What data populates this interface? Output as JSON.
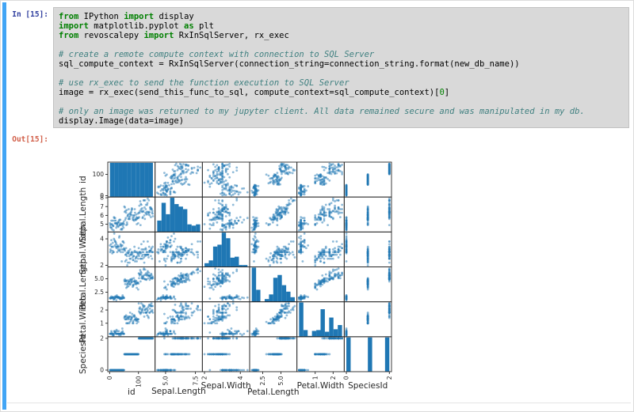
{
  "notebook": {
    "input_prompt": "In [15]:",
    "output_prompt": "Out[15]:",
    "code_lines": [
      [
        {
          "t": "from",
          "s": "kw"
        },
        {
          "t": " IPython ",
          "s": "pl"
        },
        {
          "t": "import",
          "s": "kw"
        },
        {
          "t": " display",
          "s": "pl"
        }
      ],
      [
        {
          "t": "import",
          "s": "kw"
        },
        {
          "t": " matplotlib.pyplot ",
          "s": "pl"
        },
        {
          "t": "as",
          "s": "kw"
        },
        {
          "t": " plt",
          "s": "pl"
        }
      ],
      [
        {
          "t": "from",
          "s": "kw"
        },
        {
          "t": " revoscalepy ",
          "s": "pl"
        },
        {
          "t": "import",
          "s": "kw"
        },
        {
          "t": " RxInSqlServer, rx_exec",
          "s": "pl"
        }
      ],
      [],
      [
        {
          "t": "# create a remote compute context with connection to SQL Server",
          "s": "cm"
        }
      ],
      [
        {
          "t": "sql_compute_context = RxInSqlServer(connection_string=connection_string.format(new_db_name))",
          "s": "pl"
        }
      ],
      [],
      [
        {
          "t": "# use rx_exec to send the function execution to SQL Server",
          "s": "cm"
        }
      ],
      [
        {
          "t": "image = rx_exec(send_this_func_to_sql, compute_context=sql_compute_context)[",
          "s": "pl"
        },
        {
          "t": "0",
          "s": "nm"
        },
        {
          "t": "]",
          "s": "pl"
        }
      ],
      [],
      [
        {
          "t": "# only an image was returned to my jupyter client. All data remained secure and was manipulated in my db.",
          "s": "cm"
        }
      ],
      [
        {
          "t": "display.Image(data=image)",
          "s": "pl"
        }
      ]
    ]
  },
  "colors": {
    "selected_cell_bar": "#42a5f5",
    "input_prompt": "#303f9f",
    "output_prompt": "#d2604a",
    "code_background": "#d9d9d9",
    "keyword": "#008000",
    "comment": "#408080",
    "number": "#008000",
    "plot_spine": "#262626",
    "plot_text": "#262626"
  },
  "chart_data": {
    "type": "scatter_matrix",
    "title": "",
    "marker_color": "#1f77b4",
    "marker_alpha": 0.5,
    "hist_bins": 10,
    "hist_color": "#1f77b4",
    "grid": false,
    "columns": [
      {
        "key": "id",
        "label": "id",
        "x_ticks": [
          "0",
          "100"
        ],
        "y_ticks": [
          "0",
          "100"
        ],
        "xlabel_offset": 29
      },
      {
        "key": "sepal_length",
        "label": "Sepal.Length",
        "x_ticks": [
          "5.0",
          "7.5"
        ],
        "y_ticks": [
          "5",
          "6",
          "7",
          "8"
        ],
        "xlabel_offset": 28
      },
      {
        "key": "sepal_width",
        "label": "Sepal.Width",
        "x_ticks": [
          "2",
          "4"
        ],
        "y_ticks": [
          "2",
          "4"
        ],
        "xlabel_offset": 21
      },
      {
        "key": "petal_length",
        "label": "Petal.Length",
        "x_ticks": [
          "2.5",
          "5.0"
        ],
        "y_ticks": [
          "2.5",
          "5.0"
        ],
        "xlabel_offset": 29
      },
      {
        "key": "petal_width",
        "label": "Petal.Width",
        "x_ticks": [
          "1",
          "2"
        ],
        "y_ticks": [
          "1",
          "2"
        ],
        "xlabel_offset": 21
      },
      {
        "key": "species_id",
        "label": "SpeciesId",
        "x_ticks": [
          "0",
          "2"
        ],
        "y_ticks": [
          "0",
          "2"
        ],
        "xlabel_offset": 21
      }
    ],
    "data": {
      "id_range": [
        1,
        150
      ],
      "species_runs": [
        [
          0,
          50
        ],
        [
          1,
          50
        ],
        [
          2,
          50
        ]
      ],
      "sepal_length": [
        5.1,
        4.9,
        4.7,
        4.6,
        5.0,
        5.4,
        4.6,
        5.0,
        4.4,
        4.9,
        5.4,
        4.8,
        4.8,
        4.3,
        5.8,
        5.7,
        5.4,
        5.1,
        5.7,
        5.1,
        5.4,
        5.1,
        4.6,
        5.1,
        4.8,
        5.0,
        5.0,
        5.2,
        5.2,
        4.7,
        4.8,
        5.4,
        5.2,
        5.5,
        4.9,
        5.0,
        5.5,
        4.9,
        4.4,
        5.1,
        5.0,
        4.5,
        4.4,
        5.0,
        5.1,
        4.8,
        5.1,
        4.6,
        5.3,
        5.0,
        7.0,
        6.4,
        6.9,
        5.5,
        6.5,
        5.7,
        6.3,
        4.9,
        6.6,
        5.2,
        5.0,
        5.9,
        6.0,
        6.1,
        5.6,
        6.7,
        5.6,
        5.8,
        6.2,
        5.6,
        5.9,
        6.1,
        6.3,
        6.1,
        6.4,
        6.6,
        6.8,
        6.7,
        6.0,
        5.7,
        5.5,
        5.5,
        5.8,
        6.0,
        5.4,
        6.0,
        6.7,
        6.3,
        5.6,
        5.5,
        5.5,
        6.1,
        5.8,
        5.0,
        5.6,
        5.7,
        5.7,
        6.2,
        5.1,
        5.7,
        6.3,
        5.8,
        7.1,
        6.3,
        6.5,
        7.6,
        4.9,
        7.3,
        6.7,
        7.2,
        6.5,
        6.4,
        6.8,
        5.7,
        5.8,
        6.4,
        6.5,
        7.7,
        7.7,
        6.0,
        6.9,
        5.6,
        7.7,
        6.3,
        6.7,
        7.2,
        6.2,
        6.1,
        6.4,
        7.2,
        7.4,
        7.9,
        6.4,
        6.3,
        6.1,
        7.7,
        6.3,
        6.4,
        6.0,
        6.9,
        6.7,
        6.9,
        5.8,
        6.8,
        6.7,
        6.7,
        6.3,
        6.5,
        6.2,
        5.9
      ],
      "sepal_width": [
        3.5,
        3.0,
        3.2,
        3.1,
        3.6,
        3.9,
        3.4,
        3.4,
        2.9,
        3.1,
        3.7,
        3.4,
        3.0,
        3.0,
        4.0,
        4.4,
        3.9,
        3.5,
        3.8,
        3.8,
        3.4,
        3.7,
        3.6,
        3.3,
        3.4,
        3.0,
        3.4,
        3.5,
        3.4,
        3.2,
        3.1,
        3.4,
        4.1,
        4.2,
        3.1,
        3.2,
        3.5,
        3.6,
        3.0,
        3.4,
        3.5,
        2.3,
        3.2,
        3.5,
        3.8,
        3.0,
        3.8,
        3.2,
        3.7,
        3.3,
        3.2,
        3.2,
        3.1,
        2.3,
        2.8,
        2.8,
        3.3,
        2.4,
        2.9,
        2.7,
        2.0,
        3.0,
        2.2,
        2.9,
        2.9,
        3.1,
        3.0,
        2.7,
        2.2,
        2.5,
        3.2,
        2.8,
        2.5,
        2.8,
        2.9,
        3.0,
        2.8,
        3.0,
        2.9,
        2.6,
        2.4,
        2.4,
        2.7,
        2.7,
        3.0,
        3.4,
        3.1,
        2.3,
        3.0,
        2.5,
        2.6,
        3.0,
        2.6,
        2.3,
        2.7,
        3.0,
        2.9,
        2.9,
        2.5,
        2.8,
        3.3,
        2.7,
        3.0,
        2.9,
        3.0,
        3.0,
        2.5,
        2.9,
        2.5,
        3.6,
        3.2,
        2.7,
        3.0,
        2.5,
        2.8,
        3.2,
        3.0,
        3.8,
        2.6,
        2.2,
        3.2,
        2.8,
        2.8,
        2.7,
        3.3,
        3.2,
        2.8,
        3.0,
        2.8,
        3.0,
        2.8,
        3.8,
        2.8,
        2.8,
        2.6,
        3.0,
        3.4,
        3.1,
        3.0,
        3.1,
        3.1,
        3.1,
        2.7,
        3.2,
        3.3,
        3.0,
        2.5,
        3.0,
        3.4,
        3.0
      ],
      "petal_length": [
        1.4,
        1.4,
        1.3,
        1.5,
        1.4,
        1.7,
        1.4,
        1.5,
        1.4,
        1.5,
        1.5,
        1.6,
        1.4,
        1.1,
        1.2,
        1.5,
        1.3,
        1.4,
        1.7,
        1.5,
        1.7,
        1.5,
        1.0,
        1.7,
        1.9,
        1.6,
        1.6,
        1.5,
        1.4,
        1.6,
        1.6,
        1.5,
        1.5,
        1.4,
        1.5,
        1.2,
        1.3,
        1.4,
        1.3,
        1.5,
        1.3,
        1.3,
        1.3,
        1.6,
        1.9,
        1.4,
        1.6,
        1.4,
        1.5,
        1.4,
        4.7,
        4.5,
        4.9,
        4.0,
        4.6,
        4.5,
        4.7,
        3.3,
        4.6,
        3.9,
        3.5,
        4.2,
        4.0,
        4.7,
        3.6,
        4.4,
        4.5,
        4.1,
        4.5,
        3.9,
        4.8,
        4.0,
        4.9,
        4.7,
        4.3,
        4.4,
        4.8,
        5.0,
        4.5,
        3.5,
        3.8,
        3.7,
        3.9,
        5.1,
        4.5,
        4.5,
        4.7,
        4.4,
        4.1,
        4.0,
        4.4,
        4.6,
        4.0,
        3.3,
        4.2,
        4.2,
        4.2,
        4.3,
        3.0,
        4.1,
        6.0,
        5.1,
        5.9,
        5.6,
        5.8,
        6.6,
        4.5,
        6.3,
        5.8,
        6.1,
        5.1,
        5.3,
        5.5,
        5.0,
        5.1,
        5.3,
        5.5,
        6.7,
        6.9,
        5.0,
        5.7,
        4.9,
        6.7,
        4.9,
        5.7,
        6.0,
        4.8,
        4.9,
        5.6,
        5.8,
        6.1,
        6.4,
        5.6,
        5.1,
        5.6,
        6.1,
        5.6,
        5.5,
        4.8,
        5.4,
        5.6,
        5.1,
        5.1,
        5.9,
        5.7,
        5.2,
        5.0,
        5.2,
        5.4,
        5.1
      ],
      "petal_width": [
        0.2,
        0.2,
        0.2,
        0.2,
        0.2,
        0.4,
        0.3,
        0.2,
        0.2,
        0.1,
        0.2,
        0.2,
        0.1,
        0.1,
        0.2,
        0.4,
        0.4,
        0.3,
        0.3,
        0.3,
        0.2,
        0.4,
        0.2,
        0.5,
        0.2,
        0.2,
        0.4,
        0.2,
        0.2,
        0.2,
        0.2,
        0.4,
        0.1,
        0.2,
        0.2,
        0.2,
        0.2,
        0.1,
        0.2,
        0.2,
        0.3,
        0.3,
        0.2,
        0.6,
        0.4,
        0.3,
        0.2,
        0.2,
        0.2,
        0.2,
        1.4,
        1.5,
        1.5,
        1.3,
        1.5,
        1.3,
        1.6,
        1.0,
        1.3,
        1.4,
        1.0,
        1.5,
        1.0,
        1.4,
        1.3,
        1.4,
        1.5,
        1.0,
        1.5,
        1.1,
        1.8,
        1.3,
        1.5,
        1.2,
        1.3,
        1.4,
        1.4,
        1.7,
        1.5,
        1.0,
        1.1,
        1.0,
        1.2,
        1.6,
        1.5,
        1.6,
        1.5,
        1.3,
        1.3,
        1.3,
        1.2,
        1.4,
        1.2,
        1.0,
        1.3,
        1.2,
        1.3,
        1.3,
        1.1,
        1.3,
        2.5,
        1.9,
        2.1,
        1.8,
        2.2,
        2.1,
        1.7,
        1.8,
        1.8,
        2.5,
        2.0,
        1.9,
        2.1,
        2.0,
        2.4,
        2.3,
        1.8,
        2.2,
        2.3,
        1.5,
        2.3,
        2.0,
        2.0,
        1.8,
        2.1,
        1.8,
        1.8,
        1.8,
        2.1,
        1.6,
        1.9,
        2.0,
        2.2,
        1.5,
        1.4,
        2.3,
        2.4,
        1.8,
        1.8,
        2.1,
        2.4,
        2.3,
        1.9,
        2.3,
        2.5,
        2.3,
        1.9,
        2.0,
        2.3,
        1.8
      ]
    }
  }
}
